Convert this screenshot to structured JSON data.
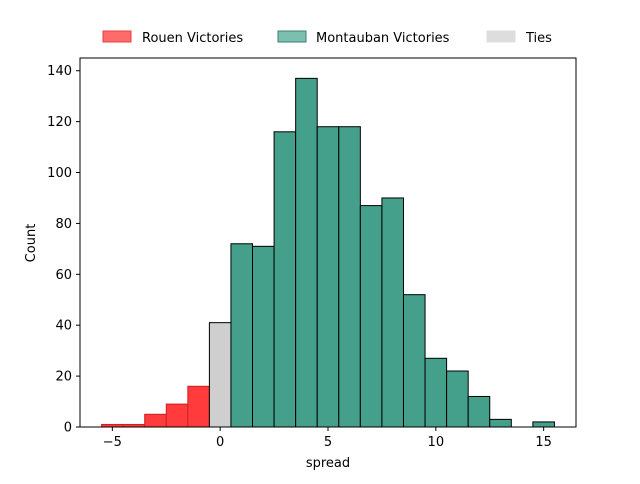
{
  "chart_data": {
    "type": "bar",
    "subtype": "histogram",
    "xlabel": "spread",
    "ylabel": "Count",
    "xlim": [
      -6.5,
      16.5
    ],
    "ylim": [
      0,
      145
    ],
    "xticks": [
      -5,
      0,
      5,
      10,
      15
    ],
    "yticks": [
      0,
      20,
      40,
      60,
      80,
      100,
      120,
      140
    ],
    "xtick_labels": [
      "−5",
      "0",
      "5",
      "10",
      "15"
    ],
    "ytick_labels": [
      "0",
      "20",
      "40",
      "60",
      "80",
      "100",
      "120",
      "140"
    ],
    "legend": {
      "placement": "top-center, above axes",
      "entries": [
        {
          "label": "Rouen Victories",
          "color": "#ff6b6b"
        },
        {
          "label": "Montauban Victories",
          "color": "#7bbfae"
        },
        {
          "label": "Ties",
          "color": "#dddddd"
        }
      ]
    },
    "series": [
      {
        "name": "Rouen Victories",
        "color": "#ff3b3b",
        "edge": "#cc2020",
        "bins": [
          [
            -5.5,
            -4.5,
            1
          ],
          [
            -4.5,
            -3.5,
            1
          ],
          [
            -3.5,
            -2.5,
            5
          ],
          [
            -2.5,
            -1.5,
            9
          ],
          [
            -1.5,
            -0.5,
            16
          ]
        ]
      },
      {
        "name": "Ties",
        "color": "#cfcfcf",
        "edge": "#000000",
        "bins": [
          [
            -0.5,
            0.5,
            41
          ]
        ]
      },
      {
        "name": "Montauban Victories",
        "color": "#44a08a",
        "edge": "#000000",
        "bins": [
          [
            0.5,
            1.5,
            72
          ],
          [
            1.5,
            2.5,
            71
          ],
          [
            2.5,
            3.5,
            116
          ],
          [
            3.5,
            4.5,
            137
          ],
          [
            4.5,
            5.5,
            118
          ],
          [
            5.5,
            6.5,
            118
          ],
          [
            6.5,
            7.5,
            87
          ],
          [
            7.5,
            8.5,
            90
          ],
          [
            8.5,
            9.5,
            52
          ],
          [
            9.5,
            10.5,
            27
          ],
          [
            10.5,
            11.5,
            22
          ],
          [
            11.5,
            12.5,
            12
          ],
          [
            12.5,
            13.5,
            3
          ],
          [
            13.5,
            14.5,
            0
          ],
          [
            14.5,
            15.5,
            2
          ]
        ]
      }
    ],
    "grid": false
  }
}
